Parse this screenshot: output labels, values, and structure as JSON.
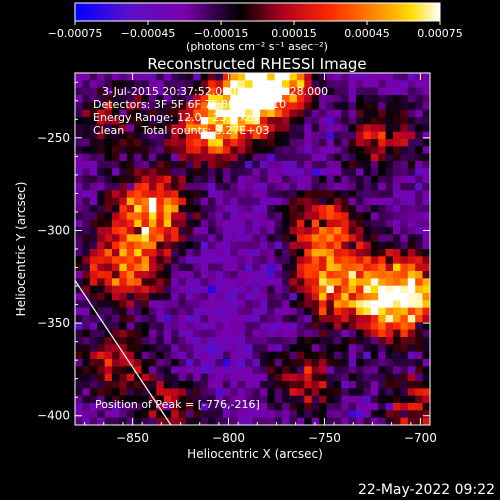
{
  "chart_data": {
    "type": "heatmap",
    "title": "Reconstructed RHESSI Image",
    "xlabel": "Heliocentric X (arcsec)",
    "ylabel": "Heliocentric Y (arcsec)",
    "xlim": [
      -880,
      -695
    ],
    "ylim": [
      -405,
      -215
    ],
    "x_ticks": [
      -850,
      -800,
      -750,
      -700
    ],
    "y_ticks": [
      -400,
      -350,
      -300,
      -250
    ],
    "x_tick_labels": [
      "−850",
      "−800",
      "−750",
      "−700"
    ],
    "y_tick_labels": [
      "−400",
      "−350",
      "−300",
      "−250"
    ],
    "colorbar": {
      "range": [
        -0.00075,
        0.00075
      ],
      "tick_values": [
        -0.00075,
        -0.00045,
        -0.00015,
        0.00015,
        0.00045,
        0.00075
      ],
      "tick_labels": [
        "−0.00075",
        "−0.00045",
        "−0.00015",
        "0.00015",
        "0.00045",
        "0.00075"
      ],
      "label": "(photons cm⁻² s⁻¹ asec⁻²)",
      "colors": [
        "#0000ff",
        "#5a10c8",
        "#7a00aa",
        "#000000",
        "#b00020",
        "#ff2a00",
        "#ff8800",
        "#ffdd00",
        "#ffffff"
      ]
    },
    "annotations": {
      "time": "3-Jul-2015 20:37:52.000 to 20:39:28.000",
      "detectors": "Detectors: 3F 5F 6F 7F 8F 9F AF 10",
      "energy": "Energy Range: 12.0 - 25.0 keV",
      "clean": "Clean     Total counts: 3.27E+03",
      "peak": "Position of Peak = [-776,-216]"
    },
    "peak": [
      -776,
      -216
    ],
    "limb_line": [
      [
        -880,
        -327
      ],
      [
        -830,
        -405
      ]
    ],
    "heatmap_sources": [
      {
        "x": -776,
        "y": -216,
        "amp": 1.0
      },
      {
        "x": -840,
        "y": -290,
        "amp": 0.85
      },
      {
        "x": -855,
        "y": -320,
        "amp": 0.7
      },
      {
        "x": -810,
        "y": -245,
        "amp": 0.75
      },
      {
        "x": -790,
        "y": -230,
        "amp": 0.8
      },
      {
        "x": -750,
        "y": -300,
        "amp": 0.65
      },
      {
        "x": -745,
        "y": -330,
        "amp": 0.7
      },
      {
        "x": -715,
        "y": -340,
        "amp": 0.75
      },
      {
        "x": -705,
        "y": -330,
        "amp": 0.6
      },
      {
        "x": -720,
        "y": -250,
        "amp": 0.45
      },
      {
        "x": -860,
        "y": -370,
        "amp": 0.45
      },
      {
        "x": -760,
        "y": -380,
        "amp": 0.45
      },
      {
        "x": -700,
        "y": -395,
        "amp": 0.5
      },
      {
        "x": -860,
        "y": -240,
        "amp": 0.4
      },
      {
        "x": -830,
        "y": -395,
        "amp": 0.35
      }
    ],
    "heatmap_dims": [
      48,
      48
    ],
    "seed": 7
  },
  "footer": {
    "timestamp": "22-May-2022 09:22"
  }
}
